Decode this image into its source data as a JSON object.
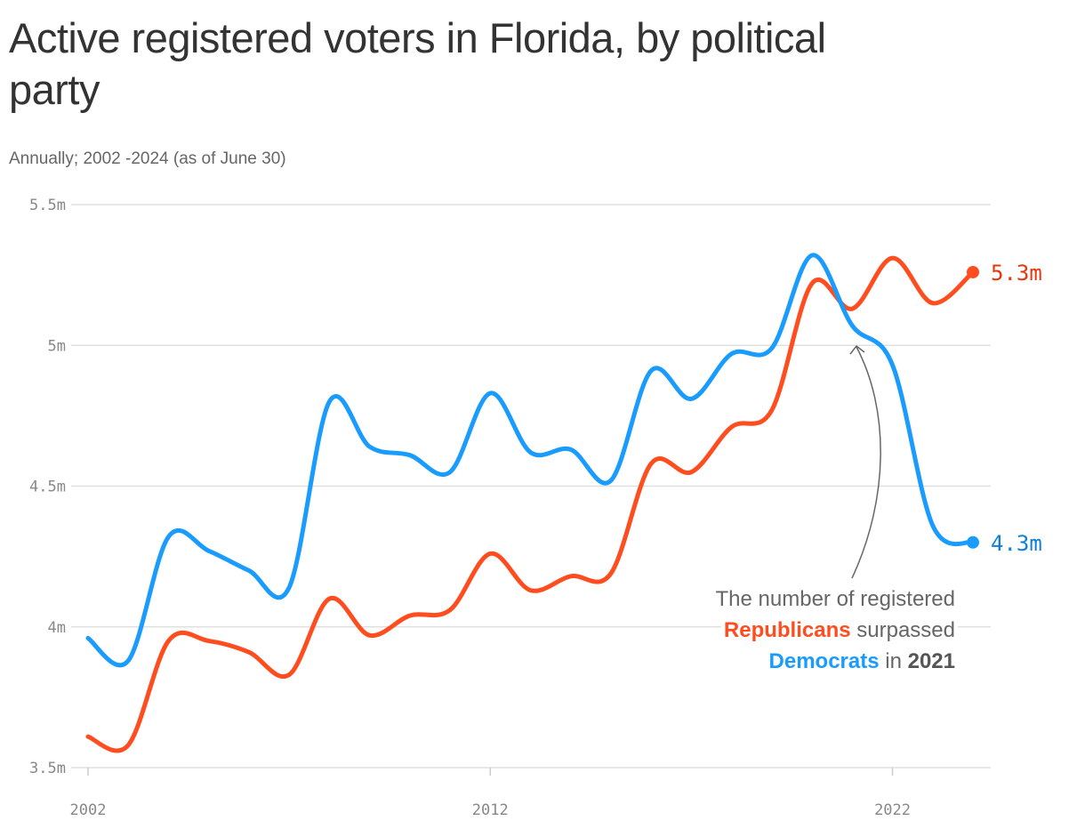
{
  "title": "Active registered voters in Florida, by political party",
  "subtitle": "Annually; 2002 -2024 (as of June 30)",
  "annotation": {
    "line1": "The number of registered",
    "republicans": "Republicans",
    "surpassed": "surpassed",
    "democrats": "Democrats",
    "in": "in",
    "year": "2021"
  },
  "chart_data": {
    "type": "line",
    "title": "Active registered voters in Florida, by political party",
    "subtitle": "Annually; 2002 -2024 (as of June 30)",
    "x": [
      2002,
      2003,
      2004,
      2005,
      2006,
      2007,
      2008,
      2009,
      2010,
      2011,
      2012,
      2013,
      2014,
      2015,
      2016,
      2017,
      2018,
      2019,
      2020,
      2021,
      2022,
      2023,
      2024
    ],
    "x_ticks": [
      "2002",
      "2012",
      "2022"
    ],
    "y_ticks": [
      "5.5m",
      "5m",
      "4.5m",
      "4m",
      "3.5m"
    ],
    "y_tick_values": [
      5.5,
      5,
      4.5,
      4,
      3.5
    ],
    "ylim": [
      3.5,
      5.5
    ],
    "y_unit": "millions",
    "grid": "horizontal",
    "series": [
      {
        "key": "republicans",
        "color": "#ff4d1f",
        "label_color": "#e8360c",
        "end_label": "5.3m",
        "values": [
          3.61,
          3.58,
          3.95,
          3.95,
          3.91,
          3.83,
          4.1,
          3.97,
          4.04,
          4.06,
          4.26,
          4.13,
          4.18,
          4.19,
          4.58,
          4.55,
          4.71,
          4.77,
          5.22,
          5.13,
          5.31,
          5.15,
          5.26
        ]
      },
      {
        "key": "democrats",
        "color": "#1a9cff",
        "label_color": "#0d7fd9",
        "end_label": "4.3m",
        "values": [
          3.96,
          3.88,
          4.32,
          4.27,
          4.2,
          4.14,
          4.8,
          4.64,
          4.61,
          4.55,
          4.83,
          4.62,
          4.63,
          4.52,
          4.91,
          4.81,
          4.97,
          4.99,
          5.32,
          5.07,
          4.93,
          4.36,
          4.3
        ]
      }
    ]
  }
}
